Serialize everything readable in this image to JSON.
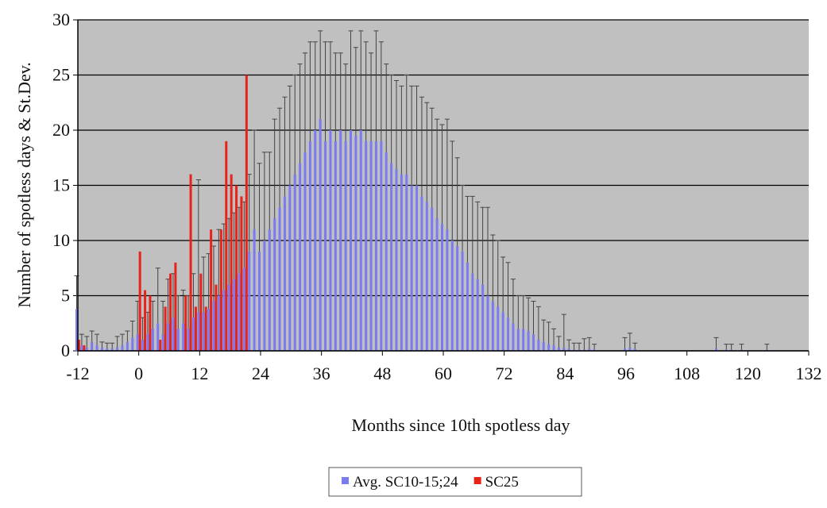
{
  "chart_data": {
    "type": "bar",
    "ylabel": "Number of spotless days & St.Dev.",
    "xlabel": "Months since 10th spotless day",
    "xlim": [
      -12,
      132
    ],
    "xticks": [
      -12,
      0,
      12,
      24,
      36,
      48,
      60,
      72,
      84,
      96,
      108,
      120,
      132
    ],
    "ylim": [
      0,
      30
    ],
    "yticks": [
      0,
      5,
      10,
      15,
      20,
      25,
      30
    ],
    "grid": true,
    "legend": "bottom",
    "x": [
      -12,
      -11,
      -10,
      -9,
      -8,
      -7,
      -6,
      -5,
      -4,
      -3,
      -2,
      -1,
      0,
      1,
      2,
      3,
      4,
      5,
      6,
      7,
      8,
      9,
      10,
      11,
      12,
      13,
      14,
      15,
      16,
      17,
      18,
      19,
      20,
      21,
      22,
      23,
      24,
      25,
      26,
      27,
      28,
      29,
      30,
      31,
      32,
      33,
      34,
      35,
      36,
      37,
      38,
      39,
      40,
      41,
      42,
      43,
      44,
      45,
      46,
      47,
      48,
      49,
      50,
      51,
      52,
      53,
      54,
      55,
      56,
      57,
      58,
      59,
      60,
      61,
      62,
      63,
      64,
      65,
      66,
      67,
      68,
      69,
      70,
      71,
      72,
      73,
      74,
      75,
      76,
      77,
      78,
      79,
      80,
      81,
      82,
      83,
      84,
      85,
      86,
      87,
      88,
      89,
      90,
      96,
      97,
      98,
      114,
      116,
      117,
      119,
      124
    ],
    "series": [
      {
        "name": "Avg. SC10-15;24",
        "color": "#7b7bf0",
        "values": [
          3.8,
          0.5,
          0.3,
          0.8,
          0.5,
          0.3,
          0.2,
          0.2,
          0.3,
          0.5,
          0.8,
          1.2,
          1.5,
          1,
          1.5,
          2,
          2.5,
          1.5,
          2.5,
          3,
          2,
          2.5,
          2,
          3,
          3.5,
          3.5,
          3.8,
          4.5,
          5,
          5.5,
          6,
          6.5,
          7,
          7.5,
          9,
          11,
          9,
          10,
          11,
          12,
          13,
          14,
          15,
          16,
          17,
          18,
          19,
          20,
          21,
          19,
          20,
          19,
          20,
          19,
          20,
          19.5,
          20,
          19,
          19,
          19,
          19,
          18,
          17,
          16.5,
          16,
          16,
          15,
          15,
          14,
          13.5,
          13,
          12,
          11.5,
          11,
          10,
          9.5,
          9,
          8,
          7,
          6.5,
          6,
          5,
          4.5,
          4,
          3.5,
          3,
          2.5,
          2,
          2,
          1.8,
          1.5,
          1,
          0.8,
          0.6,
          0.5,
          0.3,
          0.3,
          0.2,
          0.1,
          0.1,
          0.1,
          0.2,
          0.1,
          0.2,
          0.3,
          0.2,
          0.2,
          0.1,
          0.1,
          0.1,
          0.1
        ],
        "errors": [
          3,
          1,
          1,
          1,
          1,
          0.5,
          0.5,
          0.5,
          1,
          1,
          1,
          1.5,
          3,
          2,
          2,
          2.5,
          5,
          3,
          4,
          4,
          3,
          3,
          3,
          4,
          12,
          5,
          5,
          5,
          6,
          6,
          6,
          6,
          6,
          6,
          7,
          9,
          8,
          8,
          7,
          9,
          9,
          9,
          9,
          9,
          9,
          9,
          9,
          8,
          8,
          9,
          8,
          8,
          7,
          7,
          9,
          8,
          9,
          9,
          8,
          10,
          9,
          8,
          8,
          8,
          8,
          9,
          9,
          9,
          9,
          9,
          9,
          9,
          9,
          10,
          9,
          8,
          6,
          6,
          7,
          7,
          7,
          8,
          6,
          6,
          5,
          5,
          4,
          3,
          3,
          3,
          3,
          3,
          2,
          2,
          1.5,
          1,
          3,
          0.8,
          0.6,
          0.6,
          1,
          1,
          0.5,
          1,
          1.3,
          0.5,
          1,
          0.5,
          0.5,
          0.5,
          0.5
        ]
      },
      {
        "name": "SC25",
        "color": "#e8231a",
        "values": [
          1,
          0.5,
          null,
          null,
          null,
          null,
          null,
          null,
          null,
          null,
          null,
          null,
          9,
          5.5,
          5,
          null,
          1,
          4,
          7,
          8,
          null,
          5,
          16,
          4,
          7,
          4,
          11,
          6,
          11,
          19,
          16,
          15,
          14,
          25,
          null,
          null,
          null,
          null,
          null,
          null,
          null,
          null,
          null,
          null,
          null,
          null,
          null,
          null,
          null,
          null,
          null,
          null,
          null,
          null,
          null,
          null,
          null,
          null,
          null,
          null,
          null,
          null,
          null,
          null,
          null,
          null,
          null,
          null,
          null,
          null,
          null,
          null,
          null,
          null,
          null,
          null,
          null,
          null,
          null,
          null,
          null,
          null,
          null,
          null,
          null,
          null,
          null,
          null,
          null,
          null,
          null,
          null,
          null,
          null,
          null,
          null,
          null,
          null,
          null,
          null,
          null,
          null,
          null,
          null,
          null,
          null,
          null,
          null,
          null,
          null,
          null
        ]
      }
    ]
  }
}
